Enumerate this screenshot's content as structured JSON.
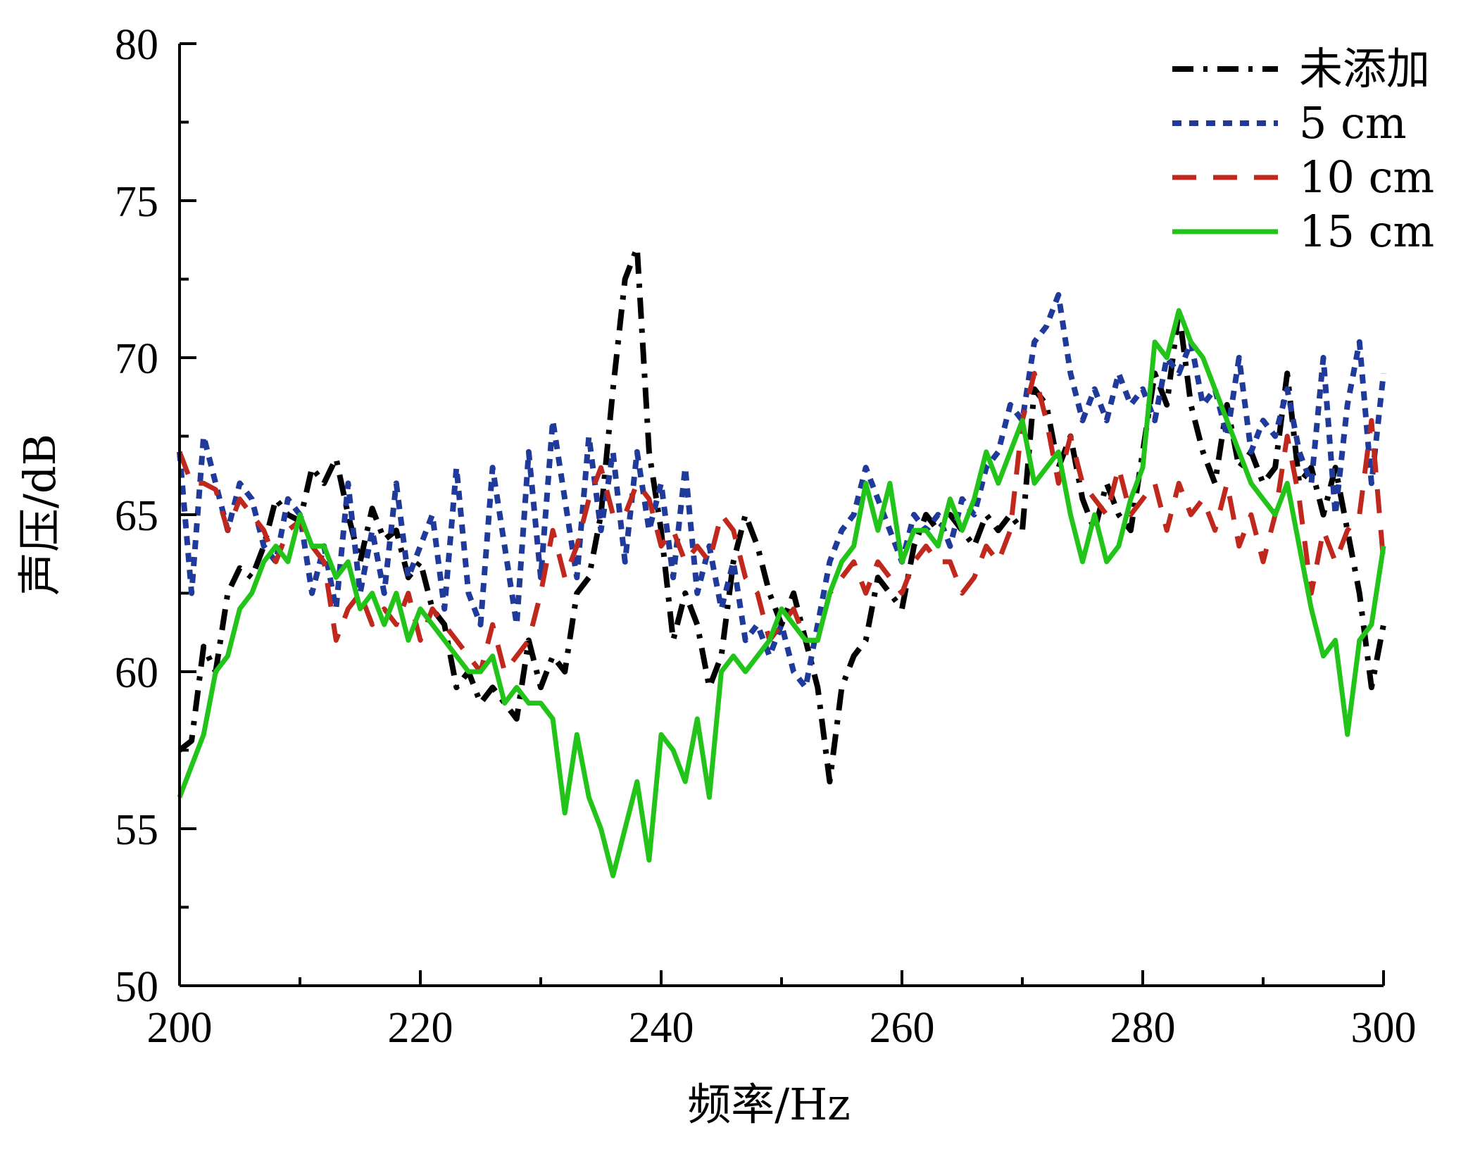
{
  "chart_data": {
    "type": "line",
    "xlabel": "频率/Hz",
    "ylabel": "声压/dB",
    "xlim": [
      200,
      300
    ],
    "ylim": [
      50,
      80
    ],
    "xticks": [
      200,
      220,
      240,
      260,
      280,
      300
    ],
    "yticks": [
      50,
      55,
      60,
      65,
      70,
      75,
      80
    ],
    "grid": false,
    "legend_position": "top-right",
    "x": [
      200,
      201,
      202,
      203,
      204,
      205,
      206,
      207,
      208,
      209,
      210,
      211,
      212,
      213,
      214,
      215,
      216,
      217,
      218,
      219,
      220,
      221,
      222,
      223,
      224,
      225,
      226,
      227,
      228,
      229,
      230,
      231,
      232,
      233,
      234,
      235,
      236,
      237,
      238,
      239,
      240,
      241,
      242,
      243,
      244,
      245,
      246,
      247,
      248,
      249,
      250,
      251,
      252,
      253,
      254,
      255,
      256,
      257,
      258,
      259,
      260,
      261,
      262,
      263,
      264,
      265,
      266,
      267,
      268,
      269,
      270,
      271,
      272,
      273,
      274,
      275,
      276,
      277,
      278,
      279,
      280,
      281,
      282,
      283,
      284,
      285,
      286,
      287,
      288,
      289,
      290,
      291,
      292,
      293,
      294,
      295,
      296,
      297,
      298,
      299,
      300
    ],
    "series": [
      {
        "name": "未添加",
        "color": "#000000",
        "dash": "dashdot",
        "values": [
          57.5,
          57.8,
          60.8,
          60.0,
          62.5,
          63.3,
          63.0,
          64.0,
          65.5,
          65.0,
          64.8,
          66.5,
          66.0,
          66.8,
          65.0,
          63.5,
          65.2,
          64.2,
          64.5,
          63.0,
          63.5,
          62.0,
          61.5,
          59.5,
          60.0,
          59.0,
          59.5,
          59.0,
          58.5,
          61.0,
          59.5,
          60.5,
          60.0,
          62.5,
          63.0,
          65.0,
          69.0,
          72.5,
          73.5,
          67.0,
          64.5,
          61.0,
          62.5,
          61.5,
          59.5,
          60.5,
          63.5,
          65.0,
          64.0,
          62.5,
          61.5,
          62.5,
          61.0,
          59.5,
          56.5,
          59.5,
          60.5,
          61.0,
          63.0,
          62.5,
          62.0,
          64.0,
          65.0,
          64.5,
          65.0,
          64.5,
          64.0,
          65.0,
          64.5,
          65.0,
          64.5,
          69.0,
          68.5,
          66.5,
          67.5,
          65.5,
          64.5,
          66.0,
          65.0,
          64.5,
          67.0,
          69.5,
          68.5,
          71.5,
          68.5,
          67.0,
          66.0,
          68.5,
          66.5,
          67.0,
          66.0,
          66.5,
          69.5,
          66.0,
          66.5,
          65.0,
          66.5,
          64.5,
          62.5,
          59.5,
          61.5
        ]
      },
      {
        "name": "5 cm",
        "color": "#1f3a9a",
        "dash": "dot",
        "values": [
          67.0,
          62.5,
          67.5,
          66.0,
          64.5,
          66.0,
          65.5,
          64.0,
          63.5,
          65.5,
          65.0,
          62.5,
          64.0,
          62.0,
          66.0,
          62.5,
          64.5,
          62.5,
          66.0,
          63.0,
          64.0,
          65.0,
          62.0,
          66.5,
          62.5,
          61.5,
          66.5,
          64.0,
          61.5,
          67.0,
          63.0,
          68.0,
          65.5,
          63.0,
          67.5,
          64.5,
          67.0,
          63.5,
          67.0,
          64.5,
          66.0,
          63.0,
          66.5,
          62.5,
          64.0,
          62.0,
          63.5,
          61.0,
          61.5,
          60.5,
          61.5,
          60.0,
          59.5,
          61.5,
          63.5,
          64.5,
          65.0,
          66.5,
          65.5,
          64.5,
          63.5,
          65.0,
          64.5,
          65.0,
          64.0,
          65.5,
          65.0,
          66.5,
          67.0,
          68.5,
          68.0,
          70.5,
          71.0,
          72.0,
          69.5,
          68.0,
          69.0,
          68.0,
          69.5,
          68.5,
          69.0,
          68.0,
          70.0,
          69.5,
          70.5,
          68.5,
          69.0,
          67.5,
          70.0,
          67.0,
          68.0,
          67.5,
          69.0,
          67.0,
          66.0,
          70.0,
          65.0,
          68.5,
          70.5,
          66.0,
          69.5
        ]
      },
      {
        "name": "10 cm",
        "color": "#c0281e",
        "dash": "dash",
        "values": [
          67.0,
          66.0,
          66.0,
          65.8,
          64.5,
          65.5,
          65.0,
          64.5,
          63.5,
          64.5,
          64.8,
          64.0,
          63.5,
          61.0,
          62.0,
          62.5,
          61.5,
          62.0,
          61.5,
          62.5,
          61.0,
          62.0,
          61.5,
          61.0,
          60.5,
          60.0,
          61.5,
          60.0,
          60.5,
          61.0,
          62.5,
          64.5,
          63.0,
          64.0,
          65.5,
          66.5,
          65.0,
          65.0,
          66.0,
          65.5,
          64.0,
          64.5,
          63.5,
          64.0,
          63.5,
          65.0,
          64.5,
          63.0,
          62.5,
          61.0,
          61.5,
          62.0,
          61.0,
          61.0,
          62.5,
          63.0,
          63.5,
          62.5,
          63.5,
          63.0,
          62.5,
          63.5,
          64.0,
          63.5,
          63.5,
          62.5,
          63.0,
          64.0,
          63.5,
          64.5,
          68.0,
          69.5,
          68.0,
          66.0,
          67.5,
          66.0,
          65.5,
          65.0,
          66.5,
          65.0,
          65.5,
          66.0,
          64.5,
          66.0,
          65.0,
          65.5,
          64.5,
          66.0,
          64.0,
          65.0,
          63.5,
          65.0,
          67.5,
          65.5,
          62.5,
          64.5,
          63.5,
          64.5,
          65.0,
          68.0,
          63.5
        ]
      },
      {
        "name": "15 cm",
        "color": "#22c41a",
        "dash": "solid",
        "values": [
          56.0,
          57.0,
          58.0,
          60.0,
          60.5,
          62.0,
          62.5,
          63.5,
          64.0,
          63.5,
          65.0,
          64.0,
          64.0,
          63.0,
          63.5,
          62.0,
          62.5,
          61.5,
          62.5,
          61.0,
          62.0,
          61.5,
          61.0,
          60.5,
          60.0,
          60.0,
          60.5,
          59.0,
          59.5,
          59.0,
          59.0,
          58.5,
          55.5,
          58.0,
          56.0,
          55.0,
          53.5,
          55.0,
          56.5,
          54.0,
          58.0,
          57.5,
          56.5,
          58.5,
          56.0,
          60.0,
          60.5,
          60.0,
          60.5,
          61.0,
          62.0,
          61.5,
          61.0,
          61.0,
          62.5,
          63.5,
          64.0,
          66.0,
          64.5,
          66.0,
          63.5,
          64.5,
          64.5,
          64.0,
          65.5,
          64.5,
          65.5,
          67.0,
          66.0,
          67.0,
          68.0,
          66.0,
          66.5,
          67.0,
          65.0,
          63.5,
          65.0,
          63.5,
          64.0,
          65.5,
          66.5,
          70.5,
          70.0,
          71.5,
          70.5,
          70.0,
          69.0,
          68.0,
          67.0,
          66.0,
          65.5,
          65.0,
          66.0,
          64.0,
          62.0,
          60.5,
          61.0,
          58.0,
          61.0,
          61.5,
          64.0
        ]
      }
    ]
  }
}
